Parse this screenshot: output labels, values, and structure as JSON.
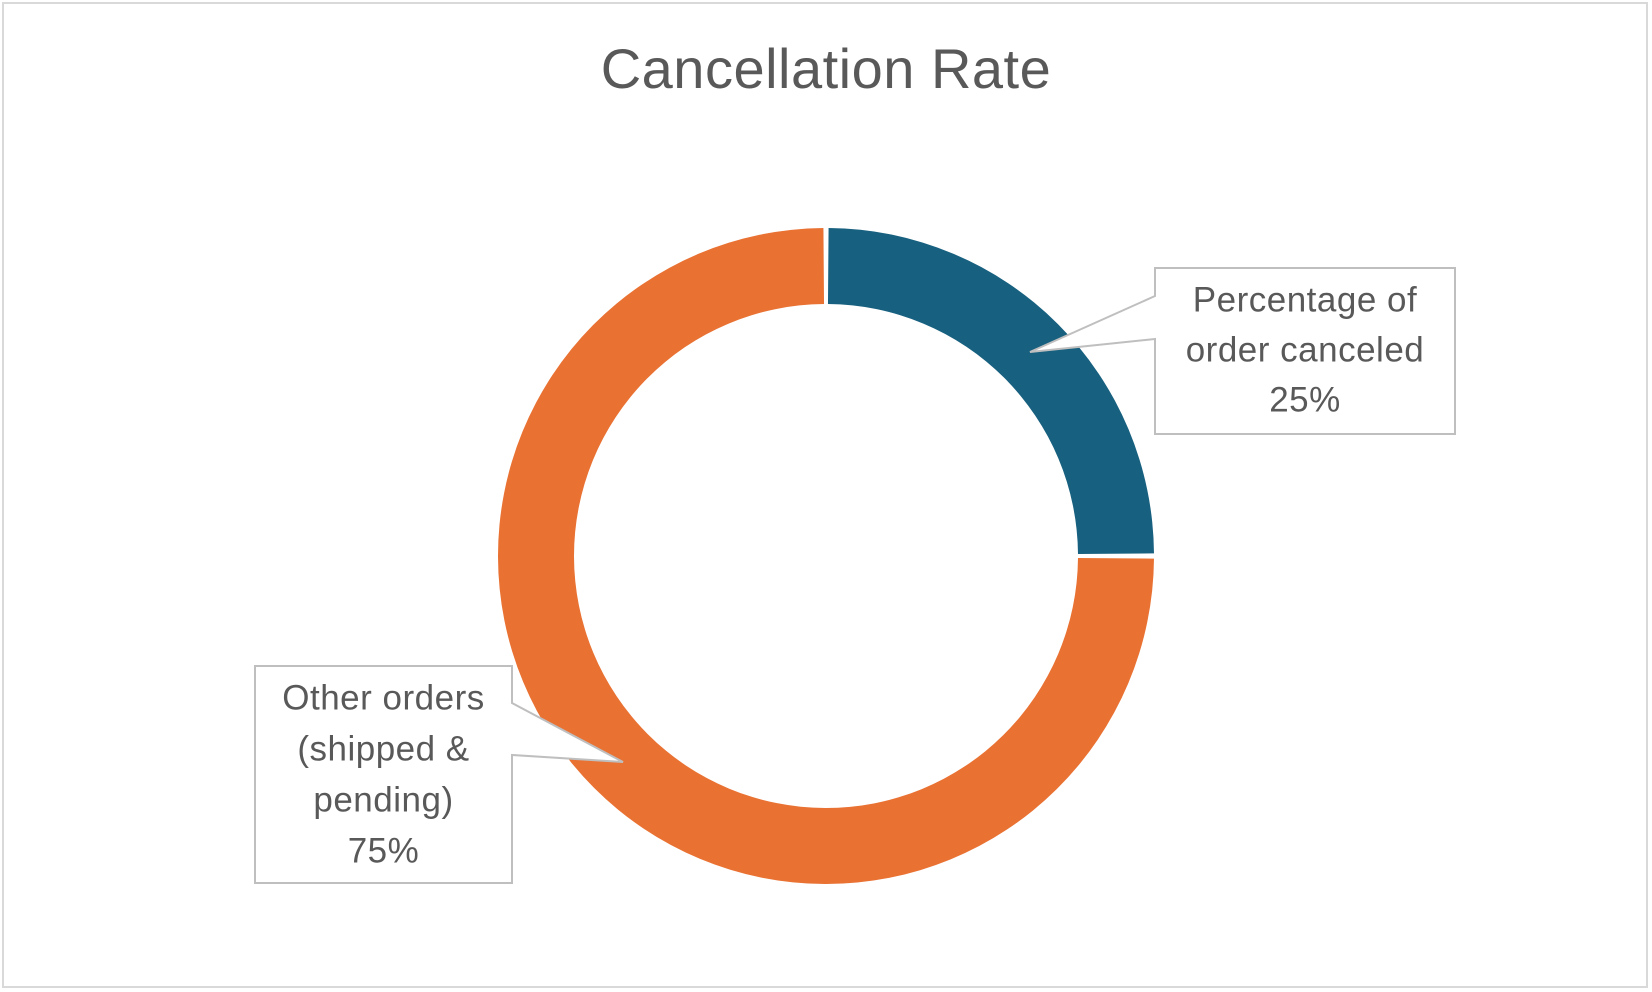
{
  "chart_data": {
    "type": "pie",
    "variant": "doughnut",
    "title": "Cancellation Rate",
    "slices": [
      {
        "name": "Percentage of order canceled",
        "value": 25,
        "label_lines": [
          "Percentage of",
          "order canceled",
          "25%"
        ],
        "color": "#17607f"
      },
      {
        "name": "Other orders (shipped & pending)",
        "value": 75,
        "label_lines": [
          "Other orders",
          "(shipped &",
          "pending)",
          "75%"
        ],
        "color": "#e97132"
      }
    ],
    "legend": "none",
    "data_labels": "callouts"
  },
  "colors": {
    "text": "#595959",
    "frame": "#d9d9d9",
    "callout_border": "#bfbfbf"
  }
}
